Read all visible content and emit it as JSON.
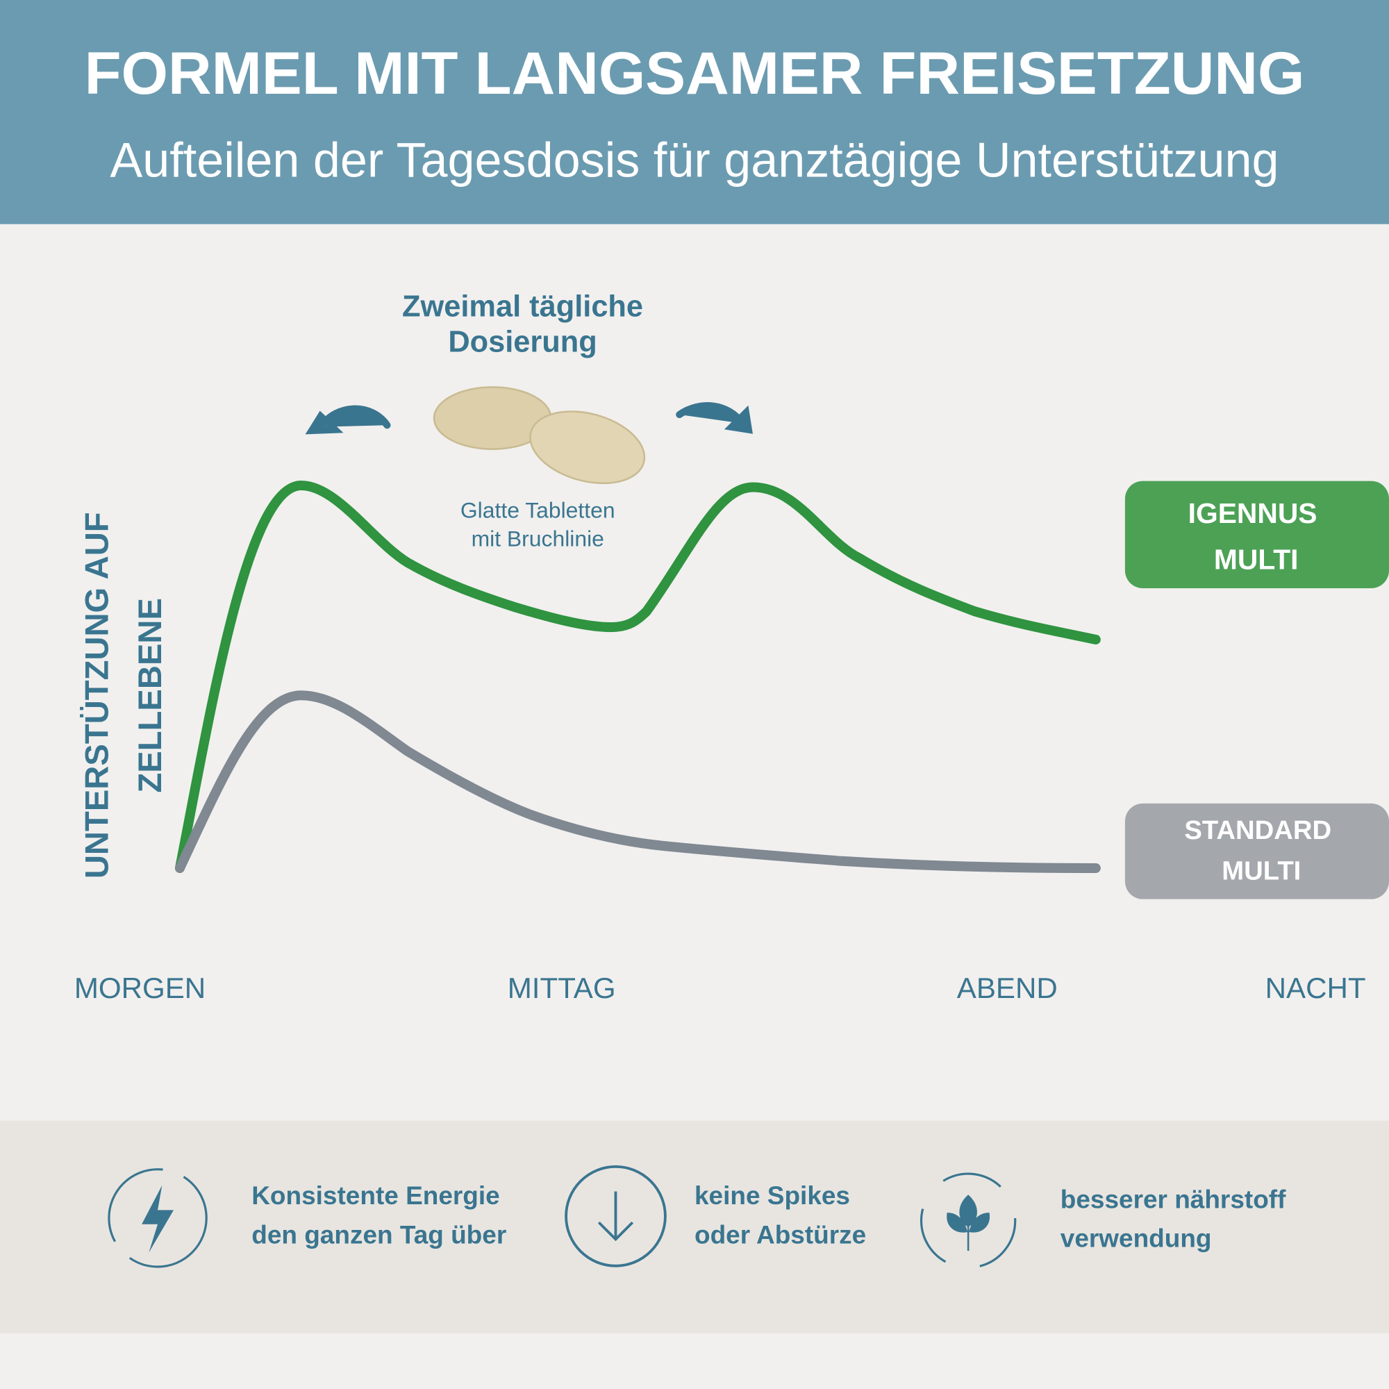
{
  "header": {
    "title": "FORMEL MIT LANGSAMER FREISETZUNG",
    "subtitle": "Aufteilen der Tagesdosis für ganztägige Unterstützung"
  },
  "diagram": {
    "y_axis_label": [
      "UNTERSTÜTZUNG AUF",
      "ZELLEBENE"
    ],
    "x_labels": [
      "MORGEN",
      "MITTAG",
      "ABEND",
      "NACHT"
    ],
    "annotation": {
      "title": [
        "Zweimal tägliche",
        "Dosierung"
      ],
      "caption": [
        "Glatte Tabletten",
        "mit Bruchlinie"
      ]
    },
    "legend": [
      {
        "label": [
          "IGENNUS",
          "MULTI"
        ]
      },
      {
        "label": [
          "STANDARD",
          "MULTI"
        ]
      }
    ]
  },
  "features": [
    {
      "text": [
        "Konsistente Energie",
        "den ganzen Tag über"
      ]
    },
    {
      "text": [
        "keine Spikes",
        "oder Abstürze"
      ]
    },
    {
      "text": [
        "besserer nährstoff",
        "verwendung"
      ]
    }
  ]
}
